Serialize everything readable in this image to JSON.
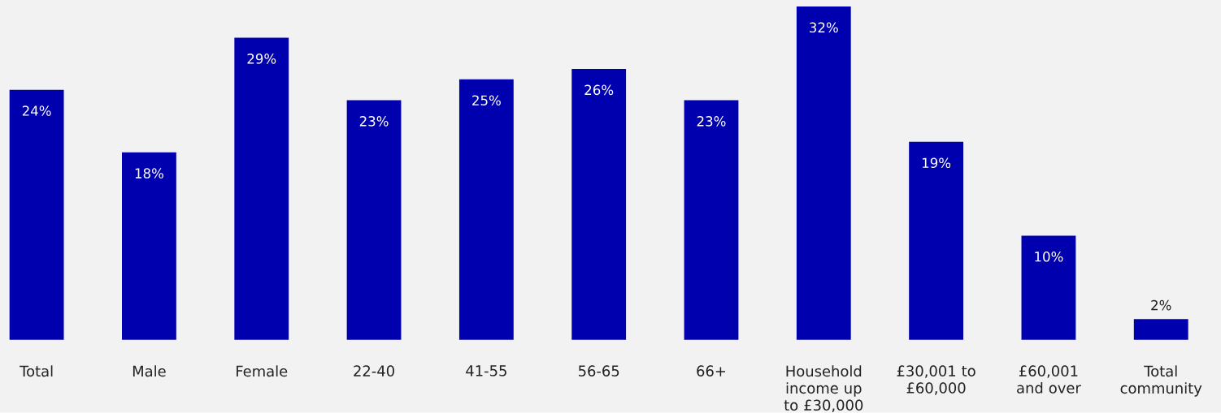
{
  "chart_data": {
    "type": "bar",
    "categories": [
      "Total",
      "Male",
      "Female",
      "22-40",
      "41-55",
      "56-65",
      "66+",
      "Household income up to £30,000",
      "£30,001 to £60,000",
      "£60,001 and over",
      "Total community"
    ],
    "values": [
      24,
      18,
      29,
      23,
      25,
      26,
      23,
      32,
      19,
      10,
      2
    ],
    "value_labels": [
      "24%",
      "18%",
      "29%",
      "23%",
      "25%",
      "26%",
      "23%",
      "32%",
      "19%",
      "10%",
      "2%"
    ],
    "color": "#0000ae"
  }
}
